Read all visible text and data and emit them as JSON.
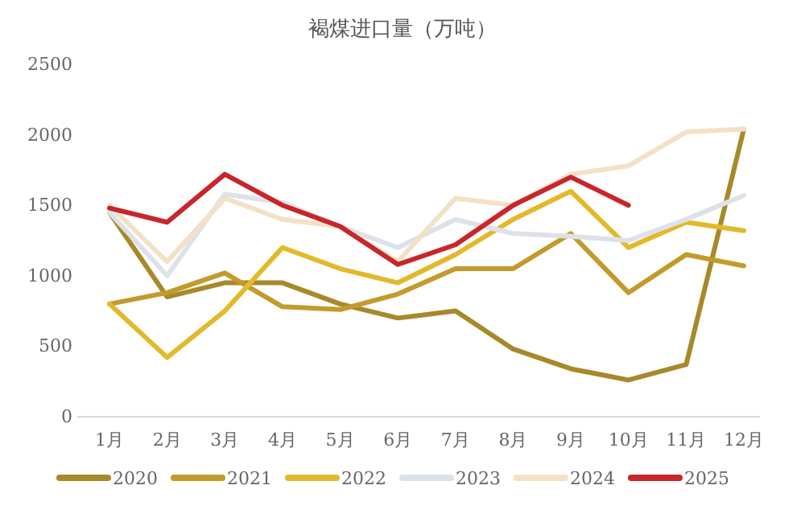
{
  "chart_data": {
    "type": "line",
    "title": "褐煤进口量（万吨）",
    "categories": [
      "1月",
      "2月",
      "3月",
      "4月",
      "5月",
      "6月",
      "7月",
      "8月",
      "9月",
      "10月",
      "11月",
      "12月"
    ],
    "ylim": [
      0,
      2500
    ],
    "yticks": [
      0,
      500,
      1000,
      1500,
      2000,
      2500
    ],
    "grid": false,
    "legend": "bottom",
    "marker": "none",
    "line_style": "solid",
    "series": [
      {
        "name": "2020",
        "color": "#a8892a",
        "values": [
          1450,
          850,
          950,
          950,
          800,
          700,
          750,
          480,
          340,
          260,
          370,
          2040
        ]
      },
      {
        "name": "2021",
        "color": "#c39b2c",
        "values": [
          800,
          880,
          1020,
          780,
          760,
          870,
          1050,
          1050,
          1300,
          880,
          1150,
          1070
        ]
      },
      {
        "name": "2022",
        "color": "#e3b92c",
        "values": [
          800,
          420,
          750,
          1200,
          1050,
          950,
          1150,
          1400,
          1600,
          1200,
          1380,
          1320
        ]
      },
      {
        "name": "2023",
        "color": "#dde2ea",
        "values": [
          1450,
          1000,
          1580,
          1520,
          1350,
          1200,
          1400,
          1300,
          1280,
          1250,
          1400,
          1570
        ]
      },
      {
        "name": "2024",
        "color": "#f3e1c6",
        "values": [
          1500,
          1100,
          1550,
          1400,
          1350,
          1100,
          1550,
          1500,
          1720,
          1780,
          2020,
          2040
        ]
      },
      {
        "name": "2025",
        "color": "#c8262a",
        "values": [
          1480,
          1380,
          1720,
          1500,
          1350,
          1080,
          1220,
          1500,
          1700,
          1500,
          null,
          null
        ]
      }
    ]
  }
}
